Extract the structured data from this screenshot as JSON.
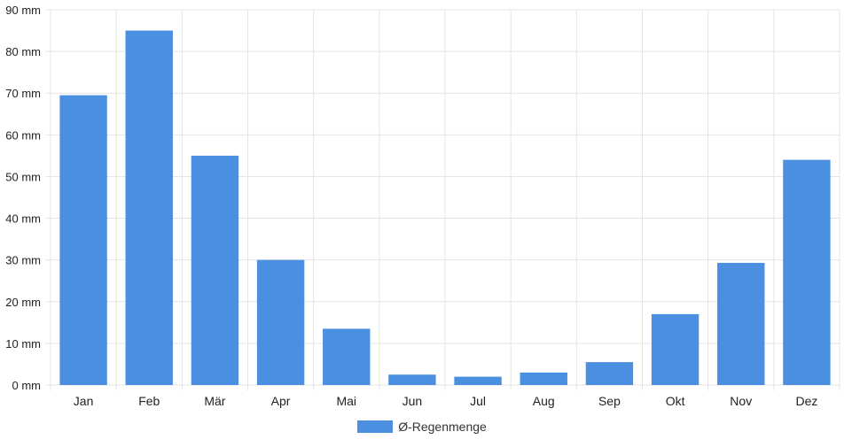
{
  "chart_data": {
    "type": "bar",
    "categories": [
      "Jan",
      "Feb",
      "Mär",
      "Apr",
      "Mai",
      "Jun",
      "Jul",
      "Aug",
      "Sep",
      "Okt",
      "Nov",
      "Dez"
    ],
    "series": [
      {
        "name": "Ø-Regenmenge",
        "values": [
          69.5,
          85,
          55,
          30,
          13.5,
          2.5,
          2,
          3,
          5.5,
          17,
          29.3,
          54
        ],
        "color": "#4a8fe0"
      }
    ],
    "y_ticks": [
      "0 mm",
      "10 mm",
      "20 mm",
      "30 mm",
      "40 mm",
      "50 mm",
      "60 mm",
      "70 mm",
      "80 mm",
      "90 mm"
    ],
    "ylim": [
      0,
      90
    ],
    "y_unit": "mm",
    "grid": true,
    "legend_position": "bottom"
  }
}
